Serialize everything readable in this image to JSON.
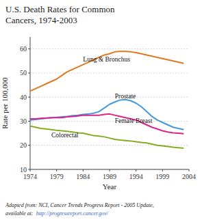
{
  "chart_data": {
    "type": "line",
    "title": "U.S. Death Rates for Common\nCancers, 1974-2003",
    "x_label": "Year",
    "y_label": "Rate per 100,000",
    "x": [
      1974,
      1975,
      1976,
      1977,
      1978,
      1979,
      1980,
      1981,
      1982,
      1983,
      1984,
      1985,
      1986,
      1987,
      1988,
      1989,
      1990,
      1991,
      1992,
      1993,
      1994,
      1995,
      1996,
      1997,
      1998,
      1999,
      2000,
      2001,
      2002,
      2003
    ],
    "series": [
      {
        "name": "Lung & Bronchus",
        "color": "#e07820",
        "values": [
          42.5,
          43.5,
          44.5,
          45.5,
          46.5,
          47.5,
          49.0,
          50.5,
          51.5,
          52.5,
          53.5,
          54.5,
          55.5,
          56.5,
          57.5,
          58.0,
          58.8,
          59.0,
          59.0,
          58.8,
          58.5,
          58.0,
          57.5,
          57.0,
          56.5,
          56.0,
          55.5,
          55.0,
          54.5,
          54.0
        ]
      },
      {
        "name": "Prostate",
        "color": "#4499dd",
        "values": [
          30.5,
          30.7,
          31.0,
          31.2,
          31.4,
          31.6,
          31.8,
          32.0,
          32.3,
          32.5,
          32.8,
          33.0,
          33.3,
          34.0,
          35.5,
          37.0,
          38.0,
          38.8,
          39.0,
          38.5,
          37.5,
          36.0,
          34.0,
          32.0,
          30.5,
          29.5,
          28.5,
          27.5,
          27.0,
          26.5
        ]
      },
      {
        "name": "Female Breast",
        "color": "#dd2288",
        "values": [
          31.0,
          31.0,
          31.2,
          31.3,
          31.5,
          31.5,
          31.5,
          31.8,
          32.0,
          32.2,
          32.5,
          32.5,
          32.5,
          32.5,
          32.8,
          33.0,
          32.5,
          32.0,
          31.5,
          31.0,
          30.5,
          29.5,
          28.5,
          27.5,
          26.8,
          26.0,
          25.5,
          25.2,
          25.0,
          24.8
        ]
      },
      {
        "name": "Colorectal",
        "color": "#88aa22",
        "values": [
          28.0,
          27.5,
          27.0,
          26.8,
          26.5,
          26.2,
          26.0,
          25.8,
          25.5,
          25.2,
          25.0,
          24.5,
          24.0,
          23.8,
          23.5,
          23.0,
          22.5,
          22.2,
          22.0,
          21.8,
          21.5,
          21.2,
          21.0,
          20.5,
          20.0,
          19.8,
          19.5,
          19.2,
          19.0,
          18.8
        ]
      }
    ],
    "xlim": [
      1974,
      2004
    ],
    "ylim": [
      10,
      65
    ],
    "xticks": [
      1974,
      1979,
      1984,
      1989,
      1994,
      1999,
      2004
    ],
    "yticks": [
      10,
      20,
      30,
      40,
      50,
      60
    ],
    "grid": true,
    "annotations": [
      {
        "text": "Adapted from: NCI, Cancer Trends Progress Report - 2005 Update,",
        "color": "#222222"
      },
      {
        "text": "available at: ",
        "color": "#222222"
      },
      {
        "text": "http://progressreport.cancer.gov/",
        "color": "#3366cc"
      }
    ]
  }
}
